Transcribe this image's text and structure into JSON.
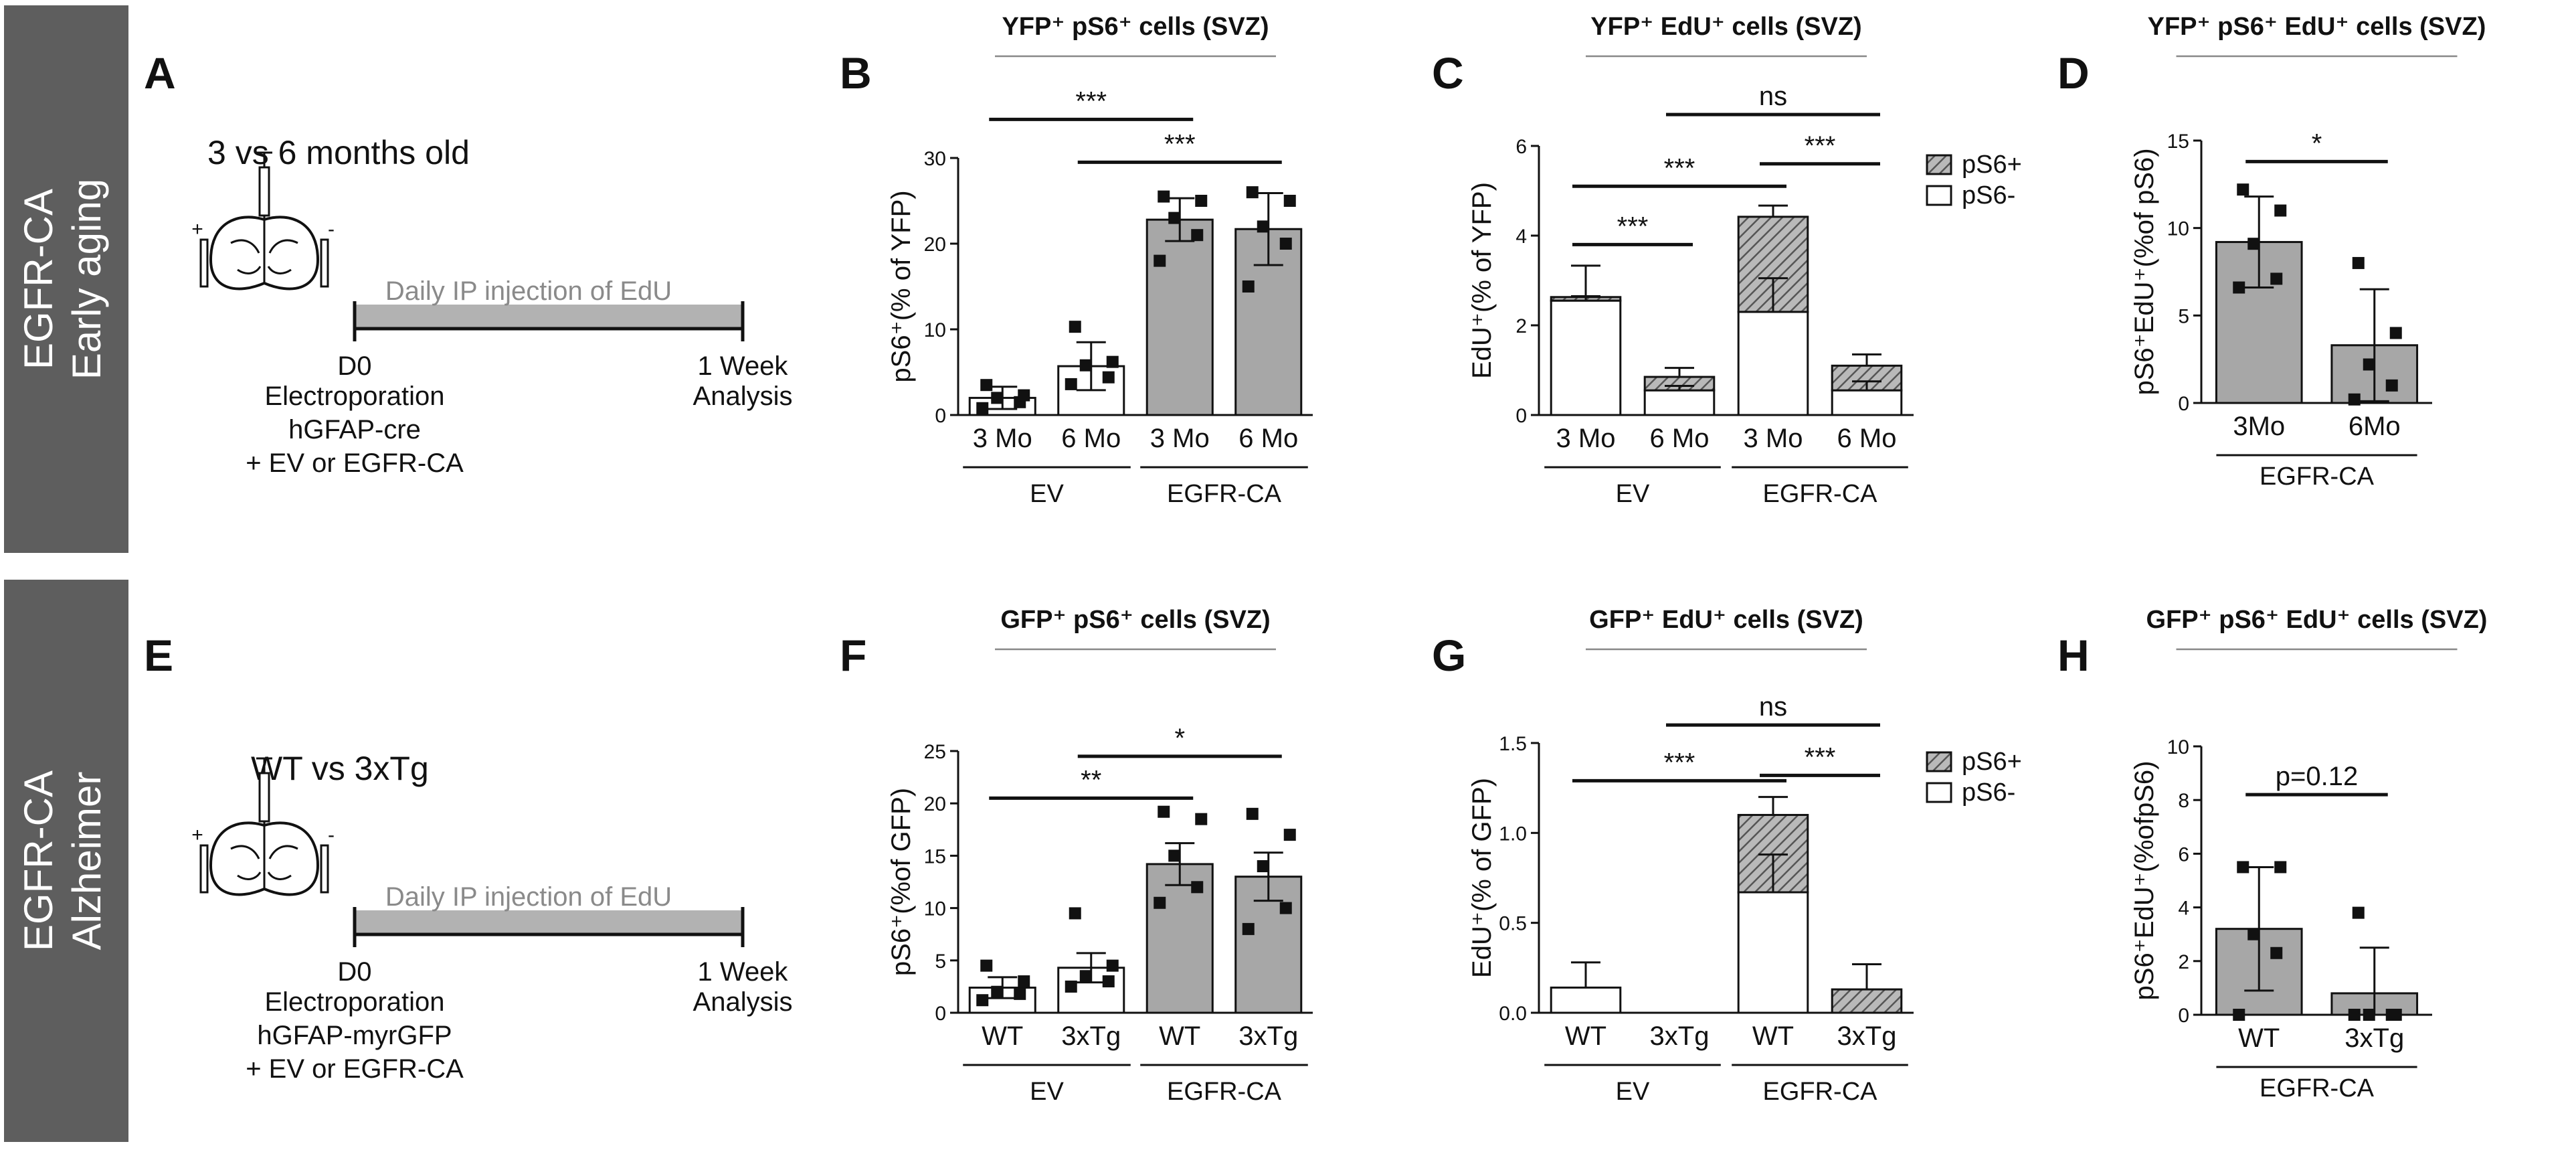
{
  "row_labels": [
    {
      "line1": "EGFR-CA",
      "line2": "Early aging"
    },
    {
      "line1": "EGFR-CA",
      "line2": "Alzheimer"
    }
  ],
  "schematics": [
    {
      "letter": "A",
      "title": "3 vs 6 months old",
      "bar_text": "Daily IP injection of EdU",
      "left_label": "D0",
      "right_label": "1 Week",
      "lines": [
        "Electroporation",
        "hGFAP-cre",
        "+ EV or EGFR-CA"
      ],
      "right_line": "Analysis"
    },
    {
      "letter": "E",
      "title": "WT vs 3xTg",
      "bar_text": "Daily IP injection of EdU",
      "left_label": "D0",
      "right_label": "1 Week",
      "lines": [
        "Electroporation",
        "hGFAP-myrGFP",
        "+ EV or EGFR-CA"
      ],
      "right_line": "Analysis"
    }
  ],
  "colors": {
    "grey_bar": "#a7a7a7",
    "row_band": "#5e5e5e",
    "hatch": "#555555"
  },
  "chart_data": [
    {
      "letter": "B",
      "type": "bar",
      "title": "YFP⁺ pS6⁺ cells (SVZ)",
      "ylabel": "pS6⁺(% of YFP)",
      "ylim": [
        0,
        30
      ],
      "yticks": [
        0,
        10,
        20,
        30
      ],
      "categories": [
        "3 Mo",
        "6 Mo",
        "3 Mo",
        "6 Mo"
      ],
      "groups": [
        "EV",
        "EGFR-CA"
      ],
      "values": [
        2,
        5.7,
        22.8,
        21.7
      ],
      "errors": [
        1.3,
        2.8,
        2.5,
        4.2
      ],
      "points": [
        [
          0.8,
          1.5,
          2.0,
          2.3,
          3.5
        ],
        [
          3.6,
          4.4,
          5.8,
          6.2,
          10.3
        ],
        [
          18.0,
          21.0,
          23.0,
          25.0,
          25.5
        ],
        [
          15.0,
          20.0,
          22.0,
          25.0,
          26.0
        ]
      ],
      "fills": [
        "white",
        "white",
        "grey",
        "grey"
      ],
      "sig": [
        {
          "from": 0,
          "to": 2,
          "y": 34.5,
          "label": "***"
        },
        {
          "from": 1,
          "to": 3,
          "y": 29.5,
          "label": "***"
        }
      ]
    },
    {
      "letter": "C",
      "type": "stacked_bar",
      "title": "YFP⁺ EdU⁺ cells (SVZ)",
      "ylabel": "EdU⁺(% of YFP)",
      "ylim": [
        0,
        6
      ],
      "yticks": [
        0,
        2,
        4,
        6
      ],
      "categories": [
        "3 Mo",
        "6 Mo",
        "3 Mo",
        "6 Mo"
      ],
      "groups": [
        "EV",
        "EGFR-CA"
      ],
      "series": [
        {
          "name": "pS6-",
          "values": [
            2.55,
            0.55,
            2.3,
            0.55
          ]
        },
        {
          "name": "pS6+",
          "values": [
            0.08,
            0.3,
            2.12,
            0.55
          ]
        }
      ],
      "total_errors": [
        0.7,
        0.2,
        0.25,
        0.25
      ],
      "inner_errors": [
        0.1,
        0.1,
        0.75,
        0.2
      ],
      "legend": [
        "pS6+",
        "pS6-"
      ],
      "sig": [
        {
          "from": 0,
          "to": 1,
          "y": 3.8,
          "label": "***"
        },
        {
          "from": 0,
          "to": 2,
          "y": 5.1,
          "label": "***"
        },
        {
          "from": 2,
          "to": 3,
          "y": 5.6,
          "label": "***"
        },
        {
          "from": 1,
          "to": 3,
          "y": 6.7,
          "label": "ns"
        }
      ]
    },
    {
      "letter": "D",
      "type": "bar",
      "title": "YFP⁺ pS6⁺ EdU⁺ cells (SVZ)",
      "ylabel": "pS6⁺EdU⁺(%of pS6)",
      "ylim": [
        0,
        15
      ],
      "yticks": [
        0,
        5,
        10,
        15
      ],
      "categories": [
        "3Mo",
        "6Mo"
      ],
      "groups": [
        "EGFR-CA"
      ],
      "values": [
        9.2,
        3.3
      ],
      "errors": [
        2.6,
        3.2
      ],
      "points": [
        [
          6.6,
          7.1,
          9.1,
          11.0,
          12.2
        ],
        [
          0.2,
          1.0,
          2.2,
          4.0,
          8.0
        ]
      ],
      "fills": [
        "grey",
        "grey"
      ],
      "sig": [
        {
          "from": 0,
          "to": 1,
          "y": 13.8,
          "label": "*"
        }
      ]
    },
    {
      "letter": "F",
      "type": "bar",
      "title": "GFP⁺ pS6⁺ cells (SVZ)",
      "ylabel": "pS6⁺(%of GFP)",
      "ylim": [
        0,
        25
      ],
      "yticks": [
        0,
        5,
        10,
        15,
        20,
        25
      ],
      "categories": [
        "WT",
        "3xTg",
        "WT",
        "3xTg"
      ],
      "groups": [
        "EV",
        "EGFR-CA"
      ],
      "values": [
        2.4,
        4.3,
        14.2,
        13.0
      ],
      "errors": [
        1.0,
        1.4,
        2.0,
        2.3
      ],
      "points": [
        [
          1.2,
          1.8,
          2.0,
          3.0,
          4.5
        ],
        [
          2.5,
          3.0,
          3.5,
          4.5,
          9.5
        ],
        [
          10.5,
          12.0,
          15.0,
          18.5,
          19.2
        ],
        [
          8.0,
          10.0,
          14.0,
          17.0,
          19.0
        ]
      ],
      "fills": [
        "white",
        "white",
        "grey",
        "grey"
      ],
      "sig": [
        {
          "from": 0,
          "to": 2,
          "y": 20.5,
          "label": "**"
        },
        {
          "from": 1,
          "to": 3,
          "y": 24.5,
          "label": "*"
        }
      ]
    },
    {
      "letter": "G",
      "type": "stacked_bar",
      "title": "GFP⁺ EdU⁺ cells (SVZ)",
      "ylabel": "EdU⁺(% of GFP)",
      "ylim": [
        0,
        1.5
      ],
      "yticks": [
        0.0,
        0.5,
        1.0,
        1.5
      ],
      "categories": [
        "WT",
        "3xTg",
        "WT",
        "3xTg"
      ],
      "groups": [
        "EV",
        "EGFR-CA"
      ],
      "series": [
        {
          "name": "pS6-",
          "values": [
            0.14,
            0,
            0.67,
            0
          ]
        },
        {
          "name": "pS6+",
          "values": [
            0,
            0,
            0.43,
            0.13
          ]
        }
      ],
      "total_errors": [
        0.14,
        0,
        0.1,
        0.14
      ],
      "inner_errors": [
        0,
        0,
        0.21,
        0
      ],
      "legend": [
        "pS6+",
        "pS6-"
      ],
      "sig": [
        {
          "from": 0,
          "to": 2,
          "y": 1.29,
          "label": "***"
        },
        {
          "from": 2,
          "to": 3,
          "y": 1.32,
          "label": "***"
        },
        {
          "from": 1,
          "to": 3,
          "y": 1.6,
          "label": "ns"
        }
      ]
    },
    {
      "letter": "H",
      "type": "bar",
      "title": "GFP⁺ pS6⁺ EdU⁺ cells (SVZ)",
      "ylabel": "pS6⁺EdU⁺(%ofpS6)",
      "ylim": [
        0,
        10
      ],
      "yticks": [
        0,
        2,
        4,
        6,
        8,
        10
      ],
      "categories": [
        "WT",
        "3xTg"
      ],
      "groups": [
        "EGFR-CA"
      ],
      "values": [
        3.2,
        0.8
      ],
      "errors": [
        2.3,
        1.7
      ],
      "points": [
        [
          0,
          2.3,
          3.0,
          5.5,
          5.5
        ],
        [
          0,
          0,
          0,
          0,
          3.8
        ]
      ],
      "fills": [
        "grey",
        "grey"
      ],
      "sig": [
        {
          "from": 0,
          "to": 1,
          "y": 8.2,
          "label": "p=0.12"
        }
      ]
    }
  ]
}
